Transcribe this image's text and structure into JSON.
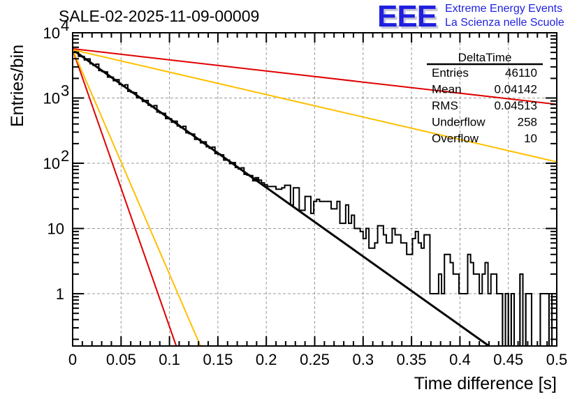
{
  "logo": {
    "letters": "EEE",
    "line1": "Extreme Energy Events",
    "line2": "La Scienza nelle Scuole"
  },
  "stats": {
    "name": "DeltaTime",
    "rows": [
      {
        "label": "Entries",
        "value": "46110"
      },
      {
        "label": "Mean",
        "value": "0.04142"
      },
      {
        "label": "RMS",
        "value": "0.04513"
      },
      {
        "label": "Underflow",
        "value": "258"
      },
      {
        "label": "Overflow",
        "value": "10"
      }
    ]
  },
  "colors": {
    "histogram": "#000000",
    "fit": "#000000",
    "red": "#e00000",
    "yellow": "#ffc000",
    "grid": "#999999"
  },
  "chart_data": {
    "type": "bar",
    "title": "SALE-02-2025-11-09-00009",
    "xlabel": "Time difference [s]",
    "ylabel": "Entries/bin",
    "xlim": [
      0,
      0.5
    ],
    "ylim": [
      0.158,
      10000
    ],
    "yscale": "log",
    "grid": true,
    "legend": "top-right",
    "x_ticks": [
      "0",
      "0.05",
      "0.1",
      "0.15",
      "0.2",
      "0.25",
      "0.3",
      "0.35",
      "0.4",
      "0.45",
      "0.5"
    ],
    "x_tick_values": [
      0,
      0.05,
      0.1,
      0.15,
      0.2,
      0.25,
      0.3,
      0.35,
      0.4,
      0.45,
      0.5
    ],
    "y_ticks": [
      {
        "value": 10000,
        "base": "10",
        "exp": "4"
      },
      {
        "value": 1000,
        "base": "10",
        "exp": "3"
      },
      {
        "value": 100,
        "base": "10",
        "exp": "2"
      },
      {
        "value": 10,
        "base": "10",
        "exp": ""
      },
      {
        "value": 1,
        "base": "1",
        "exp": ""
      }
    ],
    "bin_width": 0.003,
    "histogram": {
      "name": "DeltaTime",
      "model_start": 5500,
      "model_decay_per_s": 24.4,
      "model_until": 0.19,
      "explicit_bins": [
        {
          "x0": 0.189,
          "v": 60
        },
        {
          "x0": 0.192,
          "v": 55
        },
        {
          "x0": 0.195,
          "v": 50
        },
        {
          "x0": 0.198,
          "v": 47
        },
        {
          "x0": 0.201,
          "v": 44
        },
        {
          "x0": 0.204,
          "v": 44
        },
        {
          "x0": 0.207,
          "v": 44
        },
        {
          "x0": 0.21,
          "v": 40
        },
        {
          "x0": 0.213,
          "v": 40
        },
        {
          "x0": 0.216,
          "v": 42
        },
        {
          "x0": 0.219,
          "v": 46
        },
        {
          "x0": 0.222,
          "v": 46
        },
        {
          "x0": 0.225,
          "v": 23
        },
        {
          "x0": 0.228,
          "v": 42
        },
        {
          "x0": 0.231,
          "v": 42
        },
        {
          "x0": 0.234,
          "v": 19
        },
        {
          "x0": 0.237,
          "v": 19
        },
        {
          "x0": 0.24,
          "v": 31
        },
        {
          "x0": 0.243,
          "v": 31
        },
        {
          "x0": 0.246,
          "v": 17
        },
        {
          "x0": 0.249,
          "v": 26
        },
        {
          "x0": 0.252,
          "v": 28
        },
        {
          "x0": 0.255,
          "v": 26
        },
        {
          "x0": 0.258,
          "v": 26
        },
        {
          "x0": 0.261,
          "v": 26
        },
        {
          "x0": 0.264,
          "v": 26
        },
        {
          "x0": 0.267,
          "v": 20
        },
        {
          "x0": 0.27,
          "v": 20
        },
        {
          "x0": 0.273,
          "v": 26
        },
        {
          "x0": 0.276,
          "v": 12
        },
        {
          "x0": 0.279,
          "v": 12
        },
        {
          "x0": 0.282,
          "v": 23
        },
        {
          "x0": 0.285,
          "v": 12
        },
        {
          "x0": 0.288,
          "v": 16
        },
        {
          "x0": 0.291,
          "v": 10
        },
        {
          "x0": 0.294,
          "v": 10
        },
        {
          "x0": 0.297,
          "v": 9
        },
        {
          "x0": 0.3,
          "v": 7
        },
        {
          "x0": 0.303,
          "v": 10
        },
        {
          "x0": 0.306,
          "v": 5
        },
        {
          "x0": 0.309,
          "v": 5
        },
        {
          "x0": 0.312,
          "v": 6
        },
        {
          "x0": 0.315,
          "v": 11
        },
        {
          "x0": 0.318,
          "v": 11
        },
        {
          "x0": 0.321,
          "v": 8
        },
        {
          "x0": 0.324,
          "v": 6
        },
        {
          "x0": 0.327,
          "v": 6
        },
        {
          "x0": 0.33,
          "v": 10
        },
        {
          "x0": 0.333,
          "v": 8
        },
        {
          "x0": 0.336,
          "v": 8
        },
        {
          "x0": 0.339,
          "v": 6
        },
        {
          "x0": 0.342,
          "v": 6
        },
        {
          "x0": 0.345,
          "v": 4
        },
        {
          "x0": 0.348,
          "v": 4
        },
        {
          "x0": 0.351,
          "v": 7
        },
        {
          "x0": 0.354,
          "v": 9
        },
        {
          "x0": 0.357,
          "v": 6
        },
        {
          "x0": 0.36,
          "v": 5
        },
        {
          "x0": 0.363,
          "v": 8
        },
        {
          "x0": 0.366,
          "v": 8
        },
        {
          "x0": 0.369,
          "v": 1
        },
        {
          "x0": 0.372,
          "v": 1
        },
        {
          "x0": 0.375,
          "v": 1
        },
        {
          "x0": 0.378,
          "v": 2
        },
        {
          "x0": 0.381,
          "v": 1
        },
        {
          "x0": 0.384,
          "v": 4
        },
        {
          "x0": 0.387,
          "v": 4
        },
        {
          "x0": 0.39,
          "v": 3
        },
        {
          "x0": 0.393,
          "v": 2
        },
        {
          "x0": 0.396,
          "v": 2
        },
        {
          "x0": 0.399,
          "v": 1
        },
        {
          "x0": 0.402,
          "v": 1
        },
        {
          "x0": 0.405,
          "v": 1
        },
        {
          "x0": 0.408,
          "v": 4
        },
        {
          "x0": 0.411,
          "v": 3
        },
        {
          "x0": 0.414,
          "v": 2
        },
        {
          "x0": 0.417,
          "v": 2
        },
        {
          "x0": 0.42,
          "v": 1
        },
        {
          "x0": 0.423,
          "v": 2
        },
        {
          "x0": 0.426,
          "v": 3
        },
        {
          "x0": 0.429,
          "v": 1
        },
        {
          "x0": 0.432,
          "v": 2
        },
        {
          "x0": 0.435,
          "v": 2
        },
        {
          "x0": 0.438,
          "v": 1
        },
        {
          "x0": 0.441,
          "v": 1
        },
        {
          "x0": 0.444,
          "v": 0
        },
        {
          "x0": 0.447,
          "v": 1
        },
        {
          "x0": 0.45,
          "v": 0
        },
        {
          "x0": 0.453,
          "v": 1
        },
        {
          "x0": 0.456,
          "v": 0
        },
        {
          "x0": 0.459,
          "v": 0
        },
        {
          "x0": 0.462,
          "v": 2
        },
        {
          "x0": 0.465,
          "v": 0
        },
        {
          "x0": 0.468,
          "v": 1
        },
        {
          "x0": 0.471,
          "v": 1
        },
        {
          "x0": 0.474,
          "v": 0
        },
        {
          "x0": 0.477,
          "v": 0
        },
        {
          "x0": 0.48,
          "v": 0
        },
        {
          "x0": 0.483,
          "v": 1
        },
        {
          "x0": 0.486,
          "v": 1
        },
        {
          "x0": 0.489,
          "v": 1
        },
        {
          "x0": 0.492,
          "v": 0
        },
        {
          "x0": 0.495,
          "v": 1
        },
        {
          "x0": 0.498,
          "v": 1
        }
      ]
    },
    "lines": [
      {
        "name": "fit-line",
        "color": "#000000",
        "x": [
          0,
          0.43
        ],
        "y": [
          5500,
          0.158
        ]
      },
      {
        "name": "red-shallow-line",
        "color": "#e00000",
        "x": [
          0,
          0.5
        ],
        "y": [
          5700,
          800
        ]
      },
      {
        "name": "yellow-shallow-line",
        "color": "#ffc000",
        "x": [
          0,
          0.5
        ],
        "y": [
          5500,
          105
        ]
      },
      {
        "name": "red-steep-line",
        "color": "#e00000",
        "x": [
          0,
          0.107
        ],
        "y": [
          5500,
          0.158
        ]
      },
      {
        "name": "yellow-steep-line",
        "color": "#ffc000",
        "x": [
          0,
          0.132
        ],
        "y": [
          5500,
          0.158
        ]
      }
    ]
  }
}
